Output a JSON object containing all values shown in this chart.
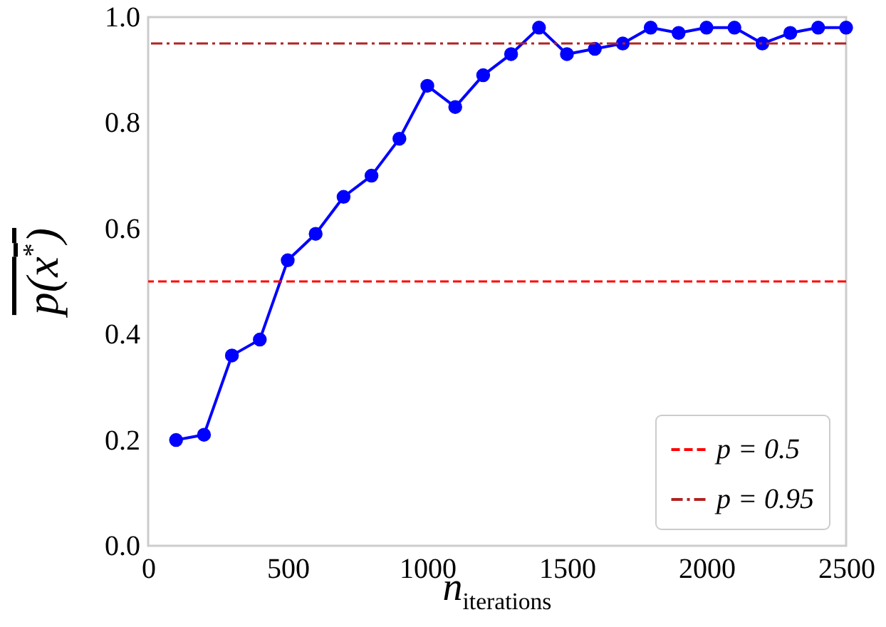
{
  "chart_data": {
    "type": "line",
    "xlabel": "n$_{iterations}$",
    "ylabel": "p(x$^{*}$)",
    "x": [
      100,
      200,
      300,
      400,
      500,
      600,
      700,
      800,
      900,
      1000,
      1100,
      1200,
      1300,
      1400,
      1500,
      1600,
      1700,
      1800,
      1900,
      2000,
      2100,
      2200,
      2300,
      2400,
      2500
    ],
    "series": [
      {
        "color": "#0000ff",
        "values": [
          0.2,
          0.21,
          0.36,
          0.39,
          0.54,
          0.59,
          0.66,
          0.7,
          0.77,
          0.87,
          0.83,
          0.89,
          0.93,
          0.98,
          0.93,
          0.94,
          0.95,
          0.98,
          0.97,
          0.98,
          0.98,
          0.95,
          0.97,
          0.98,
          0.98
        ]
      }
    ],
    "marker": "circle",
    "line_style": "solid",
    "xlim": [
      0,
      2500
    ],
    "xticks": [
      0,
      500,
      1000,
      1500,
      2000,
      2500
    ],
    "ylim": [
      0,
      1
    ],
    "yticks": [
      {
        "value": 0,
        "label": "0.0"
      },
      0.2,
      0.4,
      0.6,
      0.8,
      {
        "value": 1,
        "label": "1.0"
      }
    ],
    "ref_lines": [
      {
        "axis": "y",
        "value": 0.5,
        "label": "p = 0.5",
        "color": "#ff0000",
        "line_style": "dashed"
      },
      {
        "axis": "y",
        "value": 0.95,
        "label": "p = 0.95",
        "color": "#b22222",
        "line_style": "dashdot"
      }
    ],
    "grid": false,
    "legend": "bottom right"
  }
}
